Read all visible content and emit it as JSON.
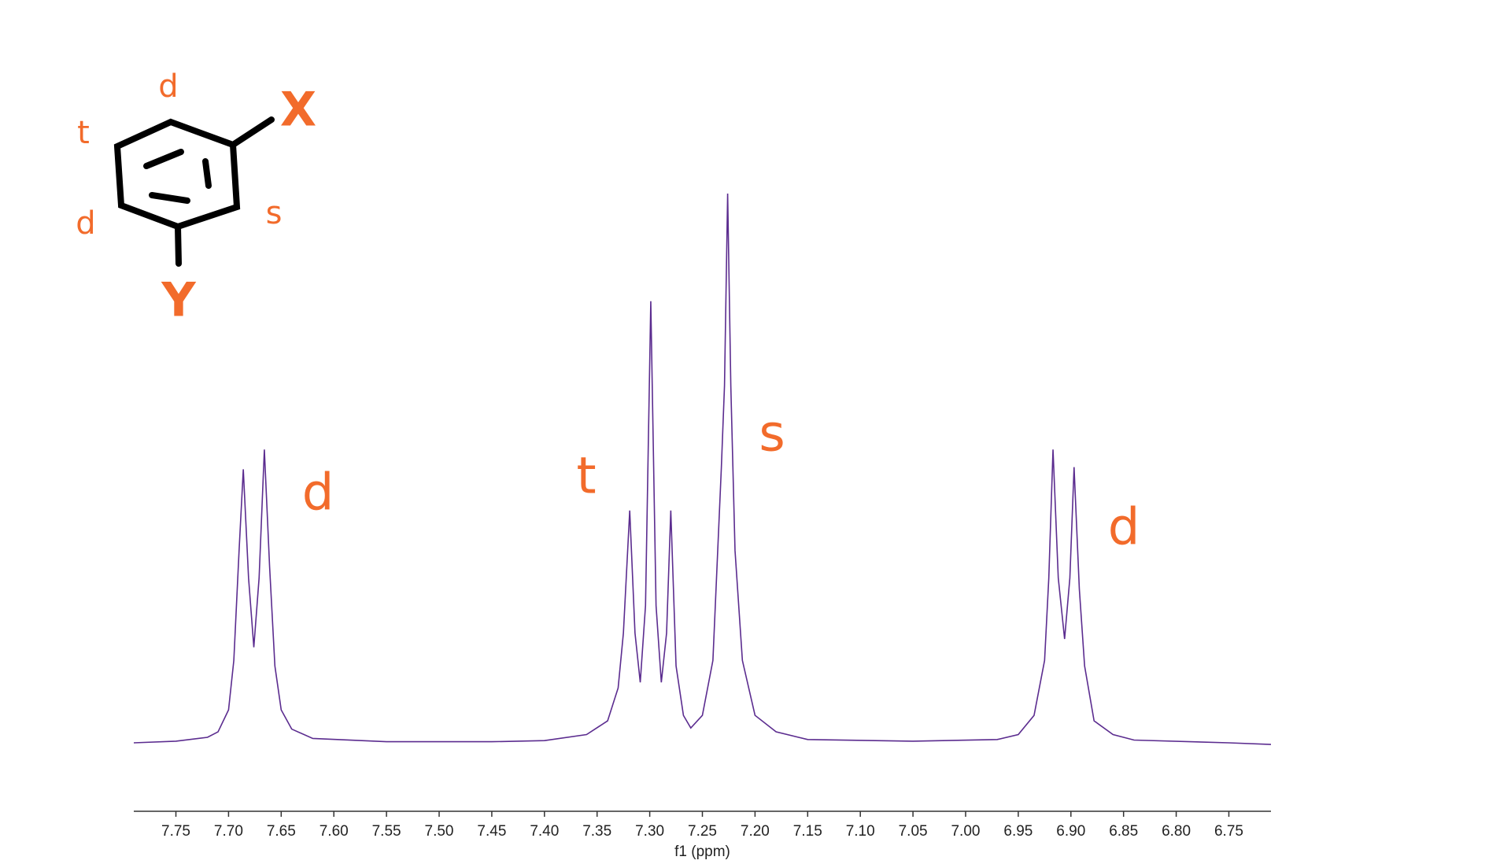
{
  "chart_data": {
    "type": "line",
    "x_label": "f1 (ppm)",
    "xlim": [
      7.79,
      6.71
    ],
    "ylim": [
      0,
      100
    ],
    "xticks": [
      7.75,
      {
        "value": 7.7,
        "label": "7.70"
      },
      7.65,
      {
        "value": 7.6,
        "label": "7.60"
      },
      7.55,
      {
        "value": 7.5,
        "label": "7.50"
      },
      7.45,
      {
        "value": 7.4,
        "label": "7.40"
      },
      7.35,
      {
        "value": 7.3,
        "label": "7.30"
      },
      7.25,
      {
        "value": 7.2,
        "label": "7.20"
      },
      7.15,
      {
        "value": 7.1,
        "label": "7.10"
      },
      7.05,
      {
        "value": 7.0,
        "label": "7.00"
      },
      6.95,
      {
        "value": 6.9,
        "label": "6.90"
      },
      6.85,
      {
        "value": 6.8,
        "label": "6.80"
      },
      6.75
    ],
    "color": "#5b2c8f",
    "x": [
      7.79,
      7.75,
      7.72,
      7.71,
      7.7,
      7.695,
      7.69,
      7.686,
      7.681,
      7.676,
      7.671,
      7.666,
      7.661,
      7.656,
      7.65,
      7.64,
      7.62,
      7.55,
      7.45,
      7.4,
      7.36,
      7.34,
      7.33,
      7.325,
      7.319,
      7.314,
      7.309,
      7.304,
      7.299,
      7.294,
      7.289,
      7.284,
      7.28,
      7.275,
      7.268,
      7.261,
      7.25,
      7.24,
      7.232,
      7.229,
      7.226,
      7.223,
      7.219,
      7.212,
      7.2,
      7.18,
      7.15,
      7.05,
      6.97,
      6.95,
      6.935,
      6.925,
      6.921,
      6.917,
      6.912,
      6.906,
      6.901,
      6.897,
      6.892,
      6.887,
      6.878,
      6.86,
      6.84,
      6.75,
      6.71
    ],
    "values": [
      0,
      0.3,
      1,
      2,
      6,
      15,
      35,
      49.8,
      30,
      17.4,
      30,
      53.4,
      32,
      14,
      6,
      2.5,
      0.8,
      0.2,
      0.2,
      0.4,
      1.5,
      4,
      10,
      20,
      42.3,
      20,
      11,
      25,
      80.4,
      25,
      11,
      20,
      42.3,
      14,
      5,
      2.7,
      5,
      15,
      50,
      65,
      100,
      65,
      35,
      15,
      5,
      2,
      0.6,
      0.3,
      0.6,
      1.5,
      5,
      15,
      30,
      53.4,
      30,
      18.9,
      30,
      50.2,
      28,
      14,
      4,
      1.5,
      0.5,
      0,
      -0.3
    ],
    "annotations": [
      "d",
      "t",
      "s",
      "d"
    ],
    "annotation_color": "#f26b2b",
    "structure_labels": [
      "X",
      "Y",
      "d",
      "t",
      "d",
      "s"
    ]
  }
}
